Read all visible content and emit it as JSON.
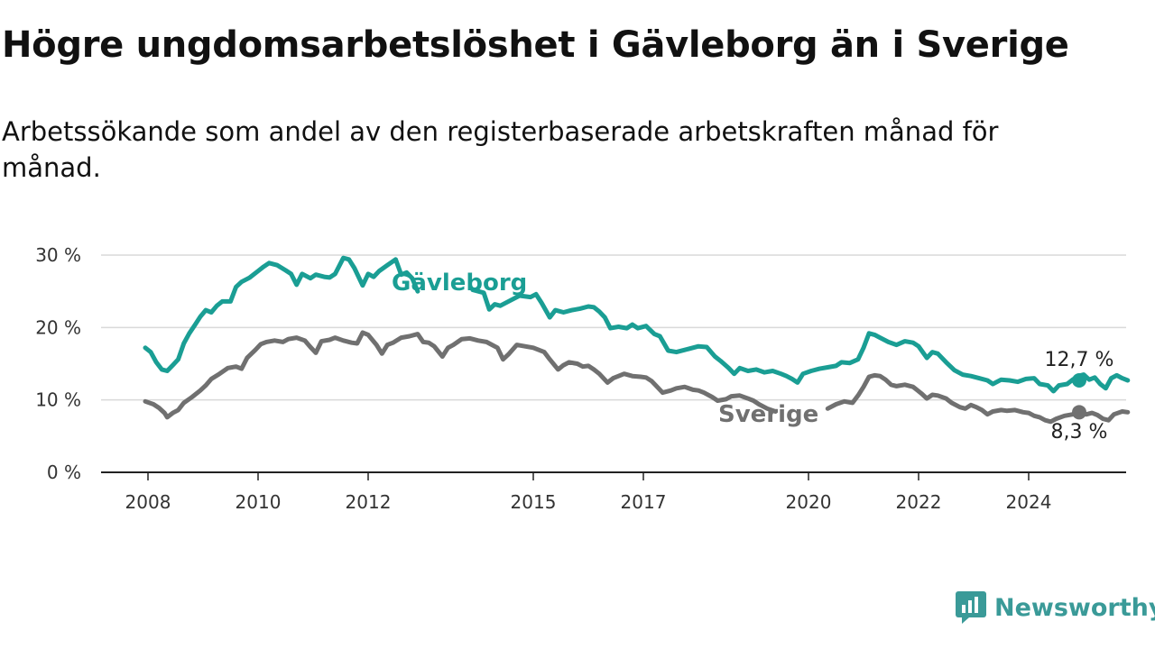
{
  "header": {
    "title": "Högre ungdomsarbetslöshet i Gävleborg än i Sverige",
    "subtitle": "Arbetssökande som andel av den registerbaserade arbetskraften månad för månad."
  },
  "brand": {
    "name": "Newsworthy",
    "icon": "newsworthy-logo-icon",
    "color": "#3a9a98"
  },
  "chart_data": {
    "type": "line",
    "x_unit": "year",
    "xlim": [
      2007.9,
      2025.1
    ],
    "ylim": [
      0,
      30
    ],
    "y_ticks": [
      {
        "value": 0,
        "label": "0 %"
      },
      {
        "value": 10,
        "label": "10 %"
      },
      {
        "value": 20,
        "label": "20 %"
      },
      {
        "value": 30,
        "label": "30 %"
      }
    ],
    "x_ticks": [
      {
        "value": 2008,
        "label": "2008"
      },
      {
        "value": 2010,
        "label": "2010"
      },
      {
        "value": 2012,
        "label": "2012"
      },
      {
        "value": 2015,
        "label": "2015"
      },
      {
        "value": 2017,
        "label": "2017"
      },
      {
        "value": 2020,
        "label": "2020"
      },
      {
        "value": 2022,
        "label": "2022"
      },
      {
        "value": 2024,
        "label": "2024"
      }
    ],
    "grid": true,
    "series": [
      {
        "name": "Gävleborg",
        "color": "#1a9e94",
        "end_label": "12,7 %",
        "end_value": 12.7,
        "points": [
          [
            2007.95,
            17.2
          ],
          [
            2008.05,
            16.6
          ],
          [
            2008.15,
            15.2
          ],
          [
            2008.25,
            14.2
          ],
          [
            2008.35,
            14.0
          ],
          [
            2008.45,
            14.8
          ],
          [
            2008.55,
            15.6
          ],
          [
            2008.65,
            17.8
          ],
          [
            2008.75,
            19.2
          ],
          [
            2008.85,
            20.3
          ],
          [
            2008.95,
            21.5
          ],
          [
            2009.05,
            22.4
          ],
          [
            2009.15,
            22.1
          ],
          [
            2009.25,
            23.0
          ],
          [
            2009.35,
            23.6
          ],
          [
            2009.5,
            23.6
          ],
          [
            2009.6,
            25.6
          ],
          [
            2009.7,
            26.3
          ],
          [
            2009.85,
            26.9
          ],
          [
            2010.0,
            27.8
          ],
          [
            2010.1,
            28.4
          ],
          [
            2010.2,
            28.9
          ],
          [
            2010.35,
            28.6
          ],
          [
            2010.5,
            27.9
          ],
          [
            2010.6,
            27.4
          ],
          [
            2010.7,
            25.9
          ],
          [
            2010.8,
            27.4
          ],
          [
            2010.95,
            26.8
          ],
          [
            2011.05,
            27.3
          ],
          [
            2011.2,
            27.0
          ],
          [
            2011.3,
            26.9
          ],
          [
            2011.4,
            27.4
          ],
          [
            2011.55,
            29.6
          ],
          [
            2011.65,
            29.4
          ],
          [
            2011.75,
            28.2
          ],
          [
            2011.9,
            25.8
          ],
          [
            2012.0,
            27.4
          ],
          [
            2012.1,
            27.0
          ],
          [
            2012.2,
            27.8
          ],
          [
            2012.35,
            28.6
          ],
          [
            2012.5,
            29.4
          ],
          [
            2012.6,
            27.3
          ],
          [
            2012.7,
            27.6
          ],
          [
            2012.8,
            26.8
          ],
          [
            2012.9,
            25.0
          ],
          [
            2013.3,
            24.0
          ],
          [
            2013.9,
            25.2
          ],
          [
            2014.1,
            24.8
          ],
          [
            2014.2,
            22.5
          ],
          [
            2014.3,
            23.2
          ],
          [
            2014.4,
            23.0
          ],
          [
            2014.55,
            23.6
          ],
          [
            2014.75,
            24.4
          ],
          [
            2014.95,
            24.2
          ],
          [
            2015.05,
            24.6
          ],
          [
            2015.15,
            23.4
          ],
          [
            2015.3,
            21.4
          ],
          [
            2015.4,
            22.4
          ],
          [
            2015.55,
            22.1
          ],
          [
            2015.7,
            22.4
          ],
          [
            2015.85,
            22.6
          ],
          [
            2016.0,
            22.9
          ],
          [
            2016.1,
            22.8
          ],
          [
            2016.2,
            22.2
          ],
          [
            2016.3,
            21.4
          ],
          [
            2016.4,
            19.9
          ],
          [
            2016.55,
            20.1
          ],
          [
            2016.7,
            19.9
          ],
          [
            2016.8,
            20.4
          ],
          [
            2016.9,
            19.9
          ],
          [
            2017.05,
            20.2
          ],
          [
            2017.2,
            19.1
          ],
          [
            2017.3,
            18.8
          ],
          [
            2017.45,
            16.8
          ],
          [
            2017.6,
            16.6
          ],
          [
            2017.75,
            16.9
          ],
          [
            2017.9,
            17.2
          ],
          [
            2018.0,
            17.4
          ],
          [
            2018.15,
            17.3
          ],
          [
            2018.3,
            16.0
          ],
          [
            2018.4,
            15.4
          ],
          [
            2018.55,
            14.4
          ],
          [
            2018.65,
            13.6
          ],
          [
            2018.75,
            14.4
          ],
          [
            2018.9,
            14.0
          ],
          [
            2019.05,
            14.2
          ],
          [
            2019.2,
            13.8
          ],
          [
            2019.35,
            14.0
          ],
          [
            2019.5,
            13.6
          ],
          [
            2019.6,
            13.3
          ],
          [
            2019.7,
            12.9
          ],
          [
            2019.8,
            12.4
          ],
          [
            2019.9,
            13.6
          ],
          [
            2020.05,
            14.0
          ],
          [
            2020.2,
            14.3
          ],
          [
            2020.35,
            14.5
          ],
          [
            2020.5,
            14.7
          ],
          [
            2020.6,
            15.2
          ],
          [
            2020.75,
            15.1
          ],
          [
            2020.9,
            15.6
          ],
          [
            2021.0,
            17.2
          ],
          [
            2021.1,
            19.2
          ],
          [
            2021.2,
            19.0
          ],
          [
            2021.3,
            18.6
          ],
          [
            2021.45,
            18.0
          ],
          [
            2021.6,
            17.6
          ],
          [
            2021.75,
            18.1
          ],
          [
            2021.9,
            17.9
          ],
          [
            2022.0,
            17.4
          ],
          [
            2022.15,
            15.8
          ],
          [
            2022.25,
            16.6
          ],
          [
            2022.35,
            16.4
          ],
          [
            2022.5,
            15.2
          ],
          [
            2022.65,
            14.1
          ],
          [
            2022.8,
            13.5
          ],
          [
            2022.95,
            13.3
          ],
          [
            2023.1,
            13.0
          ],
          [
            2023.25,
            12.7
          ],
          [
            2023.35,
            12.2
          ],
          [
            2023.5,
            12.8
          ],
          [
            2023.65,
            12.7
          ],
          [
            2023.8,
            12.5
          ],
          [
            2023.95,
            12.9
          ],
          [
            2024.1,
            13.0
          ],
          [
            2024.2,
            12.2
          ],
          [
            2024.35,
            12.0
          ],
          [
            2024.45,
            11.2
          ],
          [
            2024.55,
            12.0
          ],
          [
            2024.7,
            12.2
          ],
          [
            2024.8,
            12.8
          ],
          [
            2024.9,
            13.3
          ],
          [
            2025.0,
            13.5
          ],
          [
            2025.1,
            12.8
          ],
          [
            2025.2,
            13.1
          ],
          [
            2025.3,
            12.2
          ],
          [
            2025.4,
            11.6
          ],
          [
            2025.5,
            13.0
          ],
          [
            2025.6,
            13.4
          ],
          [
            2025.7,
            13.0
          ],
          [
            2025.8,
            12.7
          ]
        ]
      },
      {
        "name": "Sverige",
        "color": "#707070",
        "end_label": "8,3 %",
        "end_value": 8.3,
        "points": [
          [
            2007.95,
            9.8
          ],
          [
            2008.1,
            9.4
          ],
          [
            2008.2,
            8.9
          ],
          [
            2008.3,
            8.2
          ],
          [
            2008.35,
            7.6
          ],
          [
            2008.45,
            8.2
          ],
          [
            2008.55,
            8.6
          ],
          [
            2008.65,
            9.6
          ],
          [
            2008.8,
            10.4
          ],
          [
            2008.95,
            11.3
          ],
          [
            2009.05,
            12.0
          ],
          [
            2009.15,
            12.9
          ],
          [
            2009.3,
            13.6
          ],
          [
            2009.45,
            14.4
          ],
          [
            2009.6,
            14.6
          ],
          [
            2009.7,
            14.3
          ],
          [
            2009.8,
            15.8
          ],
          [
            2009.95,
            16.9
          ],
          [
            2010.05,
            17.7
          ],
          [
            2010.15,
            18.0
          ],
          [
            2010.3,
            18.2
          ],
          [
            2010.45,
            18.0
          ],
          [
            2010.55,
            18.4
          ],
          [
            2010.7,
            18.6
          ],
          [
            2010.85,
            18.2
          ],
          [
            2010.95,
            17.3
          ],
          [
            2011.05,
            16.5
          ],
          [
            2011.15,
            18.1
          ],
          [
            2011.3,
            18.3
          ],
          [
            2011.4,
            18.6
          ],
          [
            2011.55,
            18.2
          ],
          [
            2011.7,
            17.9
          ],
          [
            2011.8,
            17.8
          ],
          [
            2011.9,
            19.3
          ],
          [
            2012.0,
            19.0
          ],
          [
            2012.15,
            17.6
          ],
          [
            2012.25,
            16.4
          ],
          [
            2012.35,
            17.6
          ],
          [
            2012.45,
            17.9
          ],
          [
            2012.6,
            18.6
          ],
          [
            2012.75,
            18.8
          ],
          [
            2012.9,
            19.1
          ],
          [
            2013.0,
            18.0
          ],
          [
            2013.1,
            17.9
          ],
          [
            2013.2,
            17.4
          ],
          [
            2013.35,
            16.0
          ],
          [
            2013.45,
            17.2
          ],
          [
            2013.55,
            17.6
          ],
          [
            2013.7,
            18.4
          ],
          [
            2013.85,
            18.5
          ],
          [
            2014.0,
            18.2
          ],
          [
            2014.15,
            18.0
          ],
          [
            2014.25,
            17.6
          ],
          [
            2014.35,
            17.2
          ],
          [
            2014.45,
            15.6
          ],
          [
            2014.55,
            16.3
          ],
          [
            2014.7,
            17.6
          ],
          [
            2014.85,
            17.4
          ],
          [
            2015.0,
            17.2
          ],
          [
            2015.1,
            16.9
          ],
          [
            2015.2,
            16.6
          ],
          [
            2015.3,
            15.6
          ],
          [
            2015.45,
            14.2
          ],
          [
            2015.55,
            14.8
          ],
          [
            2015.65,
            15.2
          ],
          [
            2015.8,
            15.0
          ],
          [
            2015.9,
            14.6
          ],
          [
            2016.0,
            14.7
          ],
          [
            2016.1,
            14.2
          ],
          [
            2016.2,
            13.6
          ],
          [
            2016.35,
            12.4
          ],
          [
            2016.45,
            13.0
          ],
          [
            2016.55,
            13.3
          ],
          [
            2016.65,
            13.6
          ],
          [
            2016.8,
            13.3
          ],
          [
            2016.95,
            13.2
          ],
          [
            2017.05,
            13.1
          ],
          [
            2017.15,
            12.6
          ],
          [
            2017.25,
            11.8
          ],
          [
            2017.35,
            11.0
          ],
          [
            2017.5,
            11.3
          ],
          [
            2017.6,
            11.6
          ],
          [
            2017.75,
            11.8
          ],
          [
            2017.9,
            11.4
          ],
          [
            2018.0,
            11.3
          ],
          [
            2018.1,
            11.0
          ],
          [
            2018.25,
            10.4
          ],
          [
            2018.35,
            9.9
          ],
          [
            2018.5,
            10.1
          ],
          [
            2018.6,
            10.5
          ],
          [
            2018.75,
            10.6
          ],
          [
            2018.9,
            10.2
          ],
          [
            2019.0,
            9.9
          ],
          [
            2019.1,
            9.4
          ],
          [
            2019.25,
            8.8
          ],
          [
            2019.4,
            8.4
          ],
          [
            2020.35,
            8.8
          ],
          [
            2020.5,
            9.4
          ],
          [
            2020.65,
            9.8
          ],
          [
            2020.8,
            9.6
          ],
          [
            2020.9,
            10.6
          ],
          [
            2021.0,
            11.8
          ],
          [
            2021.1,
            13.2
          ],
          [
            2021.2,
            13.4
          ],
          [
            2021.3,
            13.3
          ],
          [
            2021.4,
            12.8
          ],
          [
            2021.5,
            12.1
          ],
          [
            2021.6,
            11.9
          ],
          [
            2021.75,
            12.1
          ],
          [
            2021.9,
            11.8
          ],
          [
            2022.05,
            10.9
          ],
          [
            2022.15,
            10.2
          ],
          [
            2022.25,
            10.7
          ],
          [
            2022.35,
            10.6
          ],
          [
            2022.5,
            10.2
          ],
          [
            2022.6,
            9.6
          ],
          [
            2022.75,
            9.0
          ],
          [
            2022.85,
            8.8
          ],
          [
            2022.95,
            9.3
          ],
          [
            2023.05,
            9.0
          ],
          [
            2023.15,
            8.6
          ],
          [
            2023.25,
            8.0
          ],
          [
            2023.35,
            8.4
          ],
          [
            2023.5,
            8.6
          ],
          [
            2023.6,
            8.5
          ],
          [
            2023.75,
            8.6
          ],
          [
            2023.9,
            8.3
          ],
          [
            2024.0,
            8.2
          ],
          [
            2024.1,
            7.8
          ],
          [
            2024.2,
            7.6
          ],
          [
            2024.3,
            7.2
          ],
          [
            2024.4,
            7.0
          ],
          [
            2024.5,
            7.4
          ],
          [
            2024.65,
            7.8
          ],
          [
            2024.8,
            8.0
          ],
          [
            2024.95,
            8.2
          ],
          [
            2025.05,
            8.0
          ],
          [
            2025.15,
            8.2
          ],
          [
            2025.25,
            7.9
          ],
          [
            2025.35,
            7.4
          ],
          [
            2025.45,
            7.2
          ],
          [
            2025.55,
            8.0
          ],
          [
            2025.7,
            8.4
          ],
          [
            2025.8,
            8.3
          ]
        ]
      }
    ]
  }
}
